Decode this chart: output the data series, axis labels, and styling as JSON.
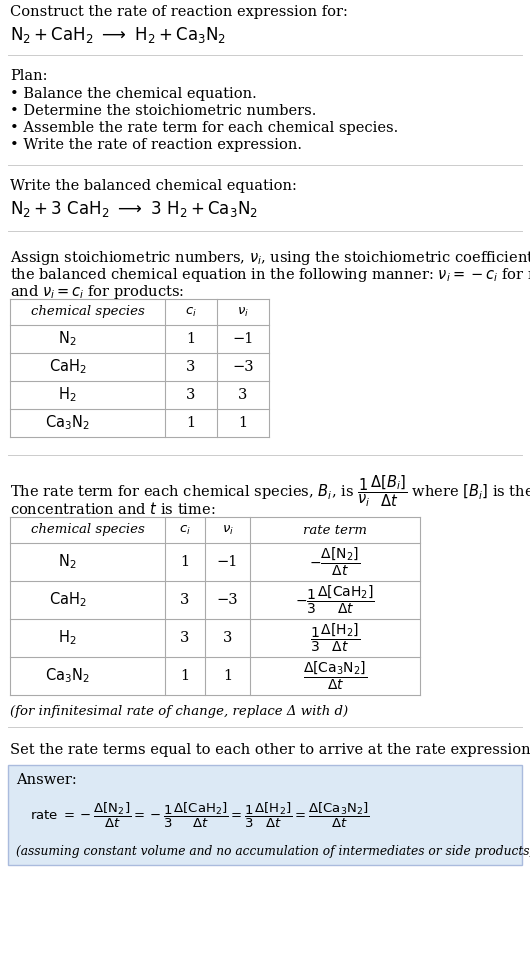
{
  "title": "Construct the rate of reaction expression for:",
  "plan_header": "Plan:",
  "plan_items": [
    "• Balance the chemical equation.",
    "• Determine the stoichiometric numbers.",
    "• Assemble the rate term for each chemical species.",
    "• Write the rate of reaction expression."
  ],
  "balanced_header": "Write the balanced chemical equation:",
  "assign_line1": "Assign stoichiometric numbers, $\\nu_i$, using the stoichiometric coefficients, $c_i$, from",
  "assign_line2": "the balanced chemical equation in the following manner: $\\nu_i = -c_i$ for reactants",
  "assign_line3": "and $\\nu_i = c_i$ for products:",
  "table1_rows": [
    [
      "N_2",
      "1",
      "−1"
    ],
    [
      "CaH_2",
      "3",
      "−3"
    ],
    [
      "H_2",
      "3",
      "3"
    ],
    [
      "Ca_3N_2",
      "1",
      "1"
    ]
  ],
  "rate_line1": "The rate term for each chemical species, $B_i$, is $\\dfrac{1}{\\nu_i}\\dfrac{\\Delta[B_i]}{\\Delta t}$ where $[B_i]$ is the amount",
  "rate_line2": "concentration and $t$ is time:",
  "table2_rows": [
    [
      "N_2",
      "1",
      "−1"
    ],
    [
      "CaH_2",
      "3",
      "−3"
    ],
    [
      "H_2",
      "3",
      "3"
    ],
    [
      "Ca_3N_2",
      "1",
      "1"
    ]
  ],
  "infinitesimal_note": "(for infinitesimal rate of change, replace Δ with d)",
  "final_header": "Set the rate terms equal to each other to arrive at the rate expression:",
  "answer_label": "Answer:",
  "answer_box_color": "#dce9f5",
  "answer_border_color": "#aabbdd",
  "assuming_note": "(assuming constant volume and no accumulation of intermediates or side products)",
  "bg_color": "#ffffff",
  "border_color": "#aaaaaa",
  "sep_line_color": "#cccccc"
}
